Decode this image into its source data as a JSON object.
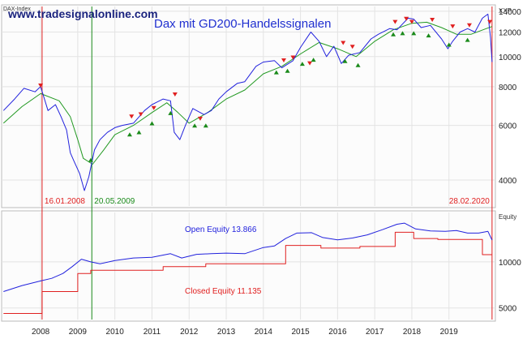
{
  "chart_data": [
    {
      "type": "line",
      "title": "Dax mit GD200-Handelssignalen",
      "watermark": "www.tradesignalonline.com",
      "panel_label": "DAX-Index",
      "axis_label": "XXP",
      "scale": "log",
      "ylim": [
        3300,
        14500
      ],
      "yticks": [
        4000,
        6000,
        8000,
        10000,
        12000,
        14000
      ],
      "ytick_labels": [
        "4000",
        "6000",
        "8000",
        "10000",
        "12000",
        "14000"
      ],
      "series": [
        {
          "color": "#2222dd",
          "x": [
            2007.0,
            2007.3,
            2007.55,
            2007.85,
            2008.0,
            2008.2,
            2008.4,
            2008.55,
            2008.7,
            2008.8,
            2008.9,
            2009.05,
            2009.18,
            2009.3,
            2009.45,
            2009.6,
            2009.8,
            2010.0,
            2010.2,
            2010.5,
            2010.8,
            2011.0,
            2011.3,
            2011.5,
            2011.6,
            2011.75,
            2011.9,
            2012.1,
            2012.4,
            2012.6,
            2012.8,
            2013.0,
            2013.3,
            2013.5,
            2013.8,
            2014.0,
            2014.3,
            2014.5,
            2014.8,
            2015.0,
            2015.28,
            2015.5,
            2015.7,
            2015.9,
            2016.1,
            2016.3,
            2016.6,
            2016.9,
            2017.1,
            2017.4,
            2017.6,
            2017.9,
            2018.05,
            2018.25,
            2018.5,
            2018.8,
            2018.97,
            2019.1,
            2019.3,
            2019.5,
            2019.7,
            2019.9,
            2020.05,
            2020.12,
            2020.16
          ],
          "y": [
            6700,
            7300,
            7900,
            7700,
            8000,
            6700,
            7000,
            6400,
            5800,
            4900,
            4600,
            4200,
            3700,
            4100,
            5000,
            5400,
            5700,
            5900,
            6000,
            6100,
            6700,
            7000,
            7300,
            7200,
            5700,
            5400,
            6000,
            6800,
            6500,
            6700,
            7300,
            7700,
            8200,
            8300,
            9300,
            9600,
            9700,
            9200,
            9700,
            10700,
            12000,
            11200,
            10000,
            10800,
            9500,
            10100,
            10300,
            11400,
            11800,
            12300,
            12200,
            13300,
            13200,
            12400,
            12600,
            11400,
            10600,
            11200,
            12000,
            12300,
            12000,
            13300,
            13700,
            11500,
            9600
          ]
        },
        {
          "color": "#229922",
          "x": [
            2007.0,
            2007.5,
            2008.0,
            2008.5,
            2008.8,
            2009.0,
            2009.15,
            2009.4,
            2009.7,
            2010.0,
            2010.5,
            2011.0,
            2011.4,
            2011.7,
            2012.0,
            2012.5,
            2013.0,
            2013.5,
            2014.0,
            2014.5,
            2015.0,
            2015.5,
            2016.0,
            2016.5,
            2017.0,
            2017.5,
            2018.0,
            2018.4,
            2018.8,
            2019.2,
            2019.6,
            2020.0,
            2020.16
          ],
          "y": [
            6100,
            6900,
            7600,
            7200,
            6400,
            5400,
            4700,
            4500,
            5000,
            5600,
            6000,
            6600,
            7100,
            6600,
            6100,
            6600,
            7300,
            7800,
            8800,
            9300,
            10200,
            11100,
            10600,
            10000,
            11200,
            12200,
            12800,
            12900,
            12400,
            11800,
            11800,
            12300,
            12500
          ]
        }
      ],
      "vertical_markers": [
        {
          "x": 2008.04,
          "label": "16.01.2008",
          "color": "#e02020"
        },
        {
          "x": 2009.38,
          "label": "20.05.2009",
          "color": "#1a8a1a"
        },
        {
          "x": 2020.16,
          "label": "28.02.2020",
          "color": "#e02020"
        }
      ],
      "signals_sell": [
        [
          2008.0,
          7800
        ],
        [
          2010.45,
          6200
        ],
        [
          2010.7,
          6300
        ],
        [
          2011.05,
          6600
        ],
        [
          2011.62,
          7300
        ],
        [
          2012.3,
          6100
        ],
        [
          2014.55,
          9400
        ],
        [
          2014.8,
          9600
        ],
        [
          2015.25,
          9200
        ],
        [
          2016.15,
          10700
        ],
        [
          2016.4,
          10400
        ],
        [
          2017.55,
          12500
        ],
        [
          2017.85,
          12800
        ],
        [
          2018.0,
          12500
        ],
        [
          2018.55,
          12700
        ],
        [
          2019.1,
          12100
        ],
        [
          2019.55,
          12200
        ],
        [
          2020.1,
          12500
        ]
      ],
      "signals_buy": [
        [
          2009.35,
          4800
        ],
        [
          2010.4,
          5800
        ],
        [
          2010.65,
          5900
        ],
        [
          2011.0,
          6300
        ],
        [
          2011.5,
          6800
        ],
        [
          2012.15,
          6200
        ],
        [
          2012.45,
          6200
        ],
        [
          2014.35,
          9200
        ],
        [
          2014.65,
          9300
        ],
        [
          2015.05,
          9800
        ],
        [
          2015.35,
          10100
        ],
        [
          2016.2,
          10000
        ],
        [
          2016.55,
          9700
        ],
        [
          2017.5,
          12200
        ],
        [
          2017.75,
          12300
        ],
        [
          2018.05,
          12300
        ],
        [
          2018.45,
          12100
        ],
        [
          2019.0,
          11300
        ],
        [
          2019.5,
          11700
        ]
      ]
    },
    {
      "type": "line",
      "axis_label": "Equity",
      "scale": "log",
      "ylim": [
        4200,
        21000
      ],
      "yticks": [
        5000,
        10000
      ],
      "ytick_labels": [
        "5000",
        "10000"
      ],
      "annotations": [
        {
          "text": "Open Equity 13.866",
          "color": "#2222dd"
        },
        {
          "text": "Closed Equity 11.135",
          "color": "#e02020"
        }
      ],
      "series": [
        {
          "name": "Open Equity",
          "color": "#2222dd",
          "x": [
            2007.0,
            2007.5,
            2008.0,
            2008.3,
            2008.6,
            2008.85,
            2009.1,
            2009.35,
            2009.6,
            2010.0,
            2010.5,
            2011.0,
            2011.5,
            2011.8,
            2012.2,
            2012.6,
            2013.0,
            2013.5,
            2014.0,
            2014.3,
            2014.6,
            2014.9,
            2015.3,
            2015.6,
            2016.0,
            2016.4,
            2016.8,
            2017.2,
            2017.6,
            2017.8,
            2018.1,
            2018.5,
            2018.9,
            2019.2,
            2019.5,
            2019.8,
            2020.05,
            2020.16
          ],
          "y": [
            6400,
            7000,
            7500,
            7800,
            8400,
            9300,
            10400,
            10000,
            9700,
            10200,
            10600,
            10700,
            11300,
            10600,
            11200,
            11300,
            11400,
            11300,
            12400,
            12700,
            14200,
            15400,
            15500,
            14400,
            13900,
            14300,
            15000,
            16200,
            17600,
            17900,
            16400,
            15900,
            15800,
            16000,
            15400,
            15400,
            15800,
            13866
          ]
        },
        {
          "name": "Closed Equity",
          "color": "#e02020",
          "x": [
            2007.0,
            2008.04,
            2008.04,
            2009.0,
            2009.0,
            2009.35,
            2009.35,
            2011.3,
            2011.3,
            2012.45,
            2012.45,
            2014.6,
            2014.6,
            2015.55,
            2015.55,
            2016.6,
            2016.6,
            2017.55,
            2017.55,
            2018.05,
            2018.05,
            2018.7,
            2018.7,
            2019.9,
            2019.9,
            2020.16
          ],
          "y": [
            4600,
            4600,
            6400,
            6400,
            8400,
            8400,
            8800,
            8800,
            9300,
            9300,
            9700,
            9700,
            12800,
            12800,
            12300,
            12300,
            12600,
            12600,
            15600,
            15600,
            14200,
            14200,
            14000,
            14000,
            11135,
            11135
          ]
        }
      ],
      "xticks": [
        2008,
        2009,
        2010,
        2011,
        2012,
        2013,
        2014,
        2015,
        2016,
        2017,
        2018,
        2019
      ],
      "xtick_labels": [
        "2008",
        "2009",
        "2010",
        "2011",
        "2012",
        "2013",
        "2014",
        "2015",
        "2016",
        "2017",
        "2018",
        "2019"
      ]
    }
  ]
}
